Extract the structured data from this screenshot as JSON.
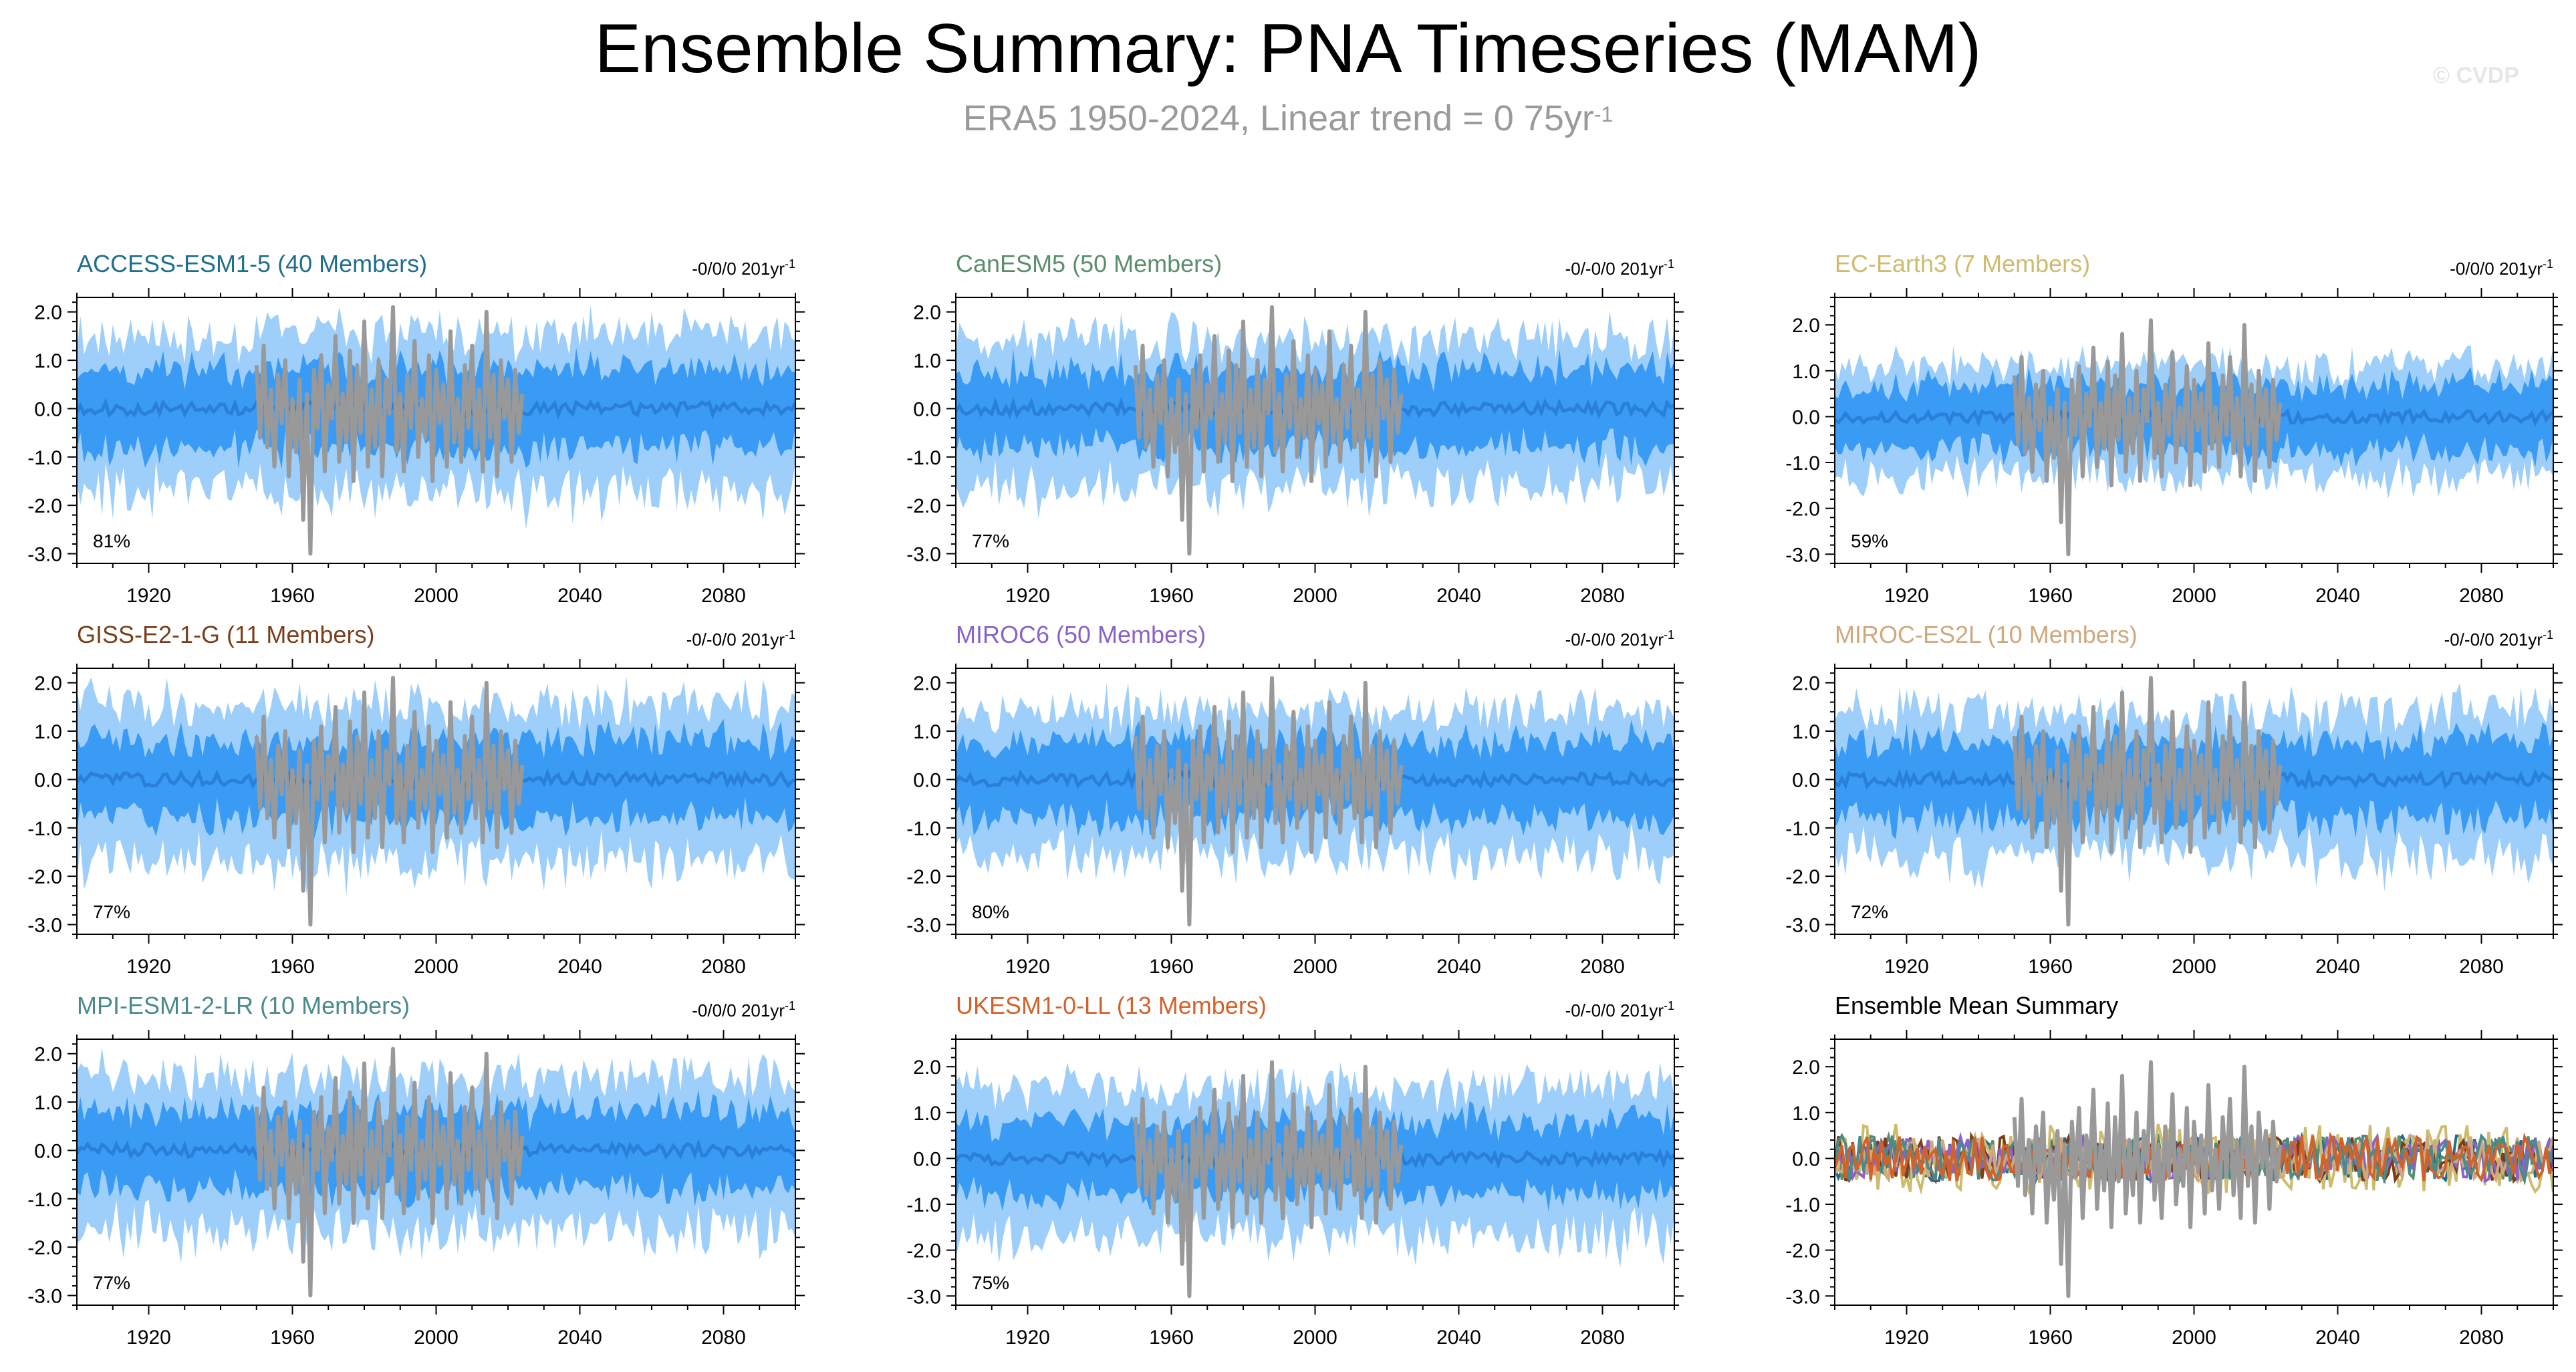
{
  "figure": {
    "title": "Ensemble Summary: PNA Timeseries (MAM)",
    "subtitle_main": "ERA5 1950-2024, Linear trend = 0 75yr",
    "subtitle_exp": "-1",
    "watermark": "© CVDP",
    "observations_color": "#999999",
    "spread_outer_color": "#9ecffa",
    "spread_inner_color": "#3a9bf5",
    "ensemble_mean_color": "#2a7fd8"
  },
  "chart_data": [
    {
      "type": "area",
      "title": "ACCESS-ESM1-5 (40 Members)",
      "title_color": "#1f6e8c",
      "trend": "-0/0/0 201yr",
      "trend_exp": "-1",
      "percent": "81%",
      "ylim": [
        -3.2,
        2.3
      ],
      "yticks": [
        2.0,
        1.0,
        0.0,
        -1.0,
        -2.0,
        -3.0
      ],
      "ytick_labels": [
        "2.0",
        "1.0",
        "0.0",
        "-1.0",
        "-2.0",
        "-3.0"
      ],
      "xlim": [
        1900,
        2100
      ],
      "xticks": [
        1920,
        1960,
        2000,
        2040,
        2080
      ],
      "xtick_labels": [
        "1920",
        "1960",
        "2000",
        "2040",
        "2080"
      ],
      "inner_halfwidth": 0.8,
      "outer_halfwidth": 1.5,
      "seed": 11
    },
    {
      "type": "area",
      "title": "CanESM5 (50 Members)",
      "title_color": "#5b8e6b",
      "trend": "-0/-0/0 201yr",
      "trend_exp": "-1",
      "percent": "77%",
      "ylim": [
        -3.2,
        2.3
      ],
      "yticks": [
        2.0,
        1.0,
        0.0,
        -1.0,
        -2.0,
        -3.0
      ],
      "ytick_labels": [
        "2.0",
        "1.0",
        "0.0",
        "-1.0",
        "-2.0",
        "-3.0"
      ],
      "xlim": [
        1900,
        2100
      ],
      "xticks": [
        1920,
        1960,
        2000,
        2040,
        2080
      ],
      "xtick_labels": [
        "1920",
        "1960",
        "2000",
        "2040",
        "2080"
      ],
      "inner_halfwidth": 0.8,
      "outer_halfwidth": 1.4,
      "seed": 23
    },
    {
      "type": "area",
      "title": "EC-Earth3 (7 Members)",
      "title_color": "#cdbb6e",
      "trend": "-0/0/0 201yr",
      "trend_exp": "-1",
      "percent": "59%",
      "ylim": [
        -3.2,
        2.6
      ],
      "yticks": [
        2.0,
        1.0,
        0.0,
        -1.0,
        -2.0,
        -3.0
      ],
      "ytick_labels": [
        "2.0",
        "1.0",
        "0.0",
        "-1.0",
        "-2.0",
        "-3.0"
      ],
      "xlim": [
        1900,
        2100
      ],
      "xticks": [
        1920,
        1960,
        2000,
        2040,
        2080
      ],
      "xtick_labels": [
        "1920",
        "1960",
        "2000",
        "2040",
        "2080"
      ],
      "inner_halfwidth": 0.7,
      "outer_halfwidth": 1.1,
      "seed": 37
    },
    {
      "type": "area",
      "title": "GISS-E2-1-G (11 Members)",
      "title_color": "#7a3f1a",
      "trend": "-0/-0/0 201yr",
      "trend_exp": "-1",
      "percent": "77%",
      "ylim": [
        -3.2,
        2.3
      ],
      "yticks": [
        2.0,
        1.0,
        0.0,
        -1.0,
        -2.0,
        -3.0
      ],
      "ytick_labels": [
        "2.0",
        "1.0",
        "0.0",
        "-1.0",
        "-2.0",
        "-3.0"
      ],
      "xlim": [
        1900,
        2100
      ],
      "xticks": [
        1920,
        1960,
        2000,
        2040,
        2080
      ],
      "xtick_labels": [
        "1920",
        "1960",
        "2000",
        "2040",
        "2080"
      ],
      "inner_halfwidth": 0.8,
      "outer_halfwidth": 1.5,
      "seed": 41
    },
    {
      "type": "area",
      "title": "MIROC6 (50 Members)",
      "title_color": "#8a63c9",
      "trend": "-0/-0/0 201yr",
      "trend_exp": "-1",
      "percent": "80%",
      "ylim": [
        -3.2,
        2.3
      ],
      "yticks": [
        2.0,
        1.0,
        0.0,
        -1.0,
        -2.0,
        -3.0
      ],
      "ytick_labels": [
        "2.0",
        "1.0",
        "0.0",
        "-1.0",
        "-2.0",
        "-3.0"
      ],
      "xlim": [
        1900,
        2100
      ],
      "xticks": [
        1920,
        1960,
        2000,
        2040,
        2080
      ],
      "xtick_labels": [
        "1920",
        "1960",
        "2000",
        "2040",
        "2080"
      ],
      "inner_halfwidth": 0.8,
      "outer_halfwidth": 1.4,
      "seed": 53
    },
    {
      "type": "area",
      "title": "MIROC-ES2L (10 Members)",
      "title_color": "#cfa87e",
      "trend": "-0/-0/0 201yr",
      "trend_exp": "-1",
      "percent": "72%",
      "ylim": [
        -3.2,
        2.3
      ],
      "yticks": [
        2.0,
        1.0,
        0.0,
        -1.0,
        -2.0,
        -3.0
      ],
      "ytick_labels": [
        "2.0",
        "1.0",
        "0.0",
        "-1.0",
        "-2.0",
        "-3.0"
      ],
      "xlim": [
        1900,
        2100
      ],
      "xticks": [
        1920,
        1960,
        2000,
        2040,
        2080
      ],
      "xtick_labels": [
        "1920",
        "1960",
        "2000",
        "2040",
        "2080"
      ],
      "inner_halfwidth": 0.8,
      "outer_halfwidth": 1.4,
      "seed": 67
    },
    {
      "type": "area",
      "title": "MPI-ESM1-2-LR (10 Members)",
      "title_color": "#4a8a8c",
      "trend": "-0/0/0 201yr",
      "trend_exp": "-1",
      "percent": "77%",
      "ylim": [
        -3.2,
        2.3
      ],
      "yticks": [
        2.0,
        1.0,
        0.0,
        -1.0,
        -2.0,
        -3.0
      ],
      "ytick_labels": [
        "2.0",
        "1.0",
        "0.0",
        "-1.0",
        "-2.0",
        "-3.0"
      ],
      "xlim": [
        1900,
        2100
      ],
      "xticks": [
        1920,
        1960,
        2000,
        2040,
        2080
      ],
      "xtick_labels": [
        "1920",
        "1960",
        "2000",
        "2040",
        "2080"
      ],
      "inner_halfwidth": 0.8,
      "outer_halfwidth": 1.5,
      "seed": 71
    },
    {
      "type": "area",
      "title": "UKESM1-0-LL (13 Members)",
      "title_color": "#d2622a",
      "trend": "-0/-0/0 201yr",
      "trend_exp": "-1",
      "percent": "75%",
      "ylim": [
        -3.2,
        2.6
      ],
      "yticks": [
        2.0,
        1.0,
        0.0,
        -1.0,
        -2.0,
        -3.0
      ],
      "ytick_labels": [
        "2.0",
        "1.0",
        "0.0",
        "-1.0",
        "-2.0",
        "-3.0"
      ],
      "xlim": [
        1900,
        2100
      ],
      "xticks": [
        1920,
        1960,
        2000,
        2040,
        2080
      ],
      "xtick_labels": [
        "1920",
        "1960",
        "2000",
        "2040",
        "2080"
      ],
      "inner_halfwidth": 0.8,
      "outer_halfwidth": 1.5,
      "seed": 83
    },
    {
      "type": "line",
      "title": "Ensemble Mean Summary",
      "title_color": "#000000",
      "trend": "",
      "trend_exp": "",
      "percent": "",
      "ylim": [
        -3.2,
        2.6
      ],
      "yticks": [
        2.0,
        1.0,
        0.0,
        -1.0,
        -2.0,
        -3.0
      ],
      "ytick_labels": [
        "2.0",
        "1.0",
        "0.0",
        "-1.0",
        "-2.0",
        "-3.0"
      ],
      "xlim": [
        1900,
        2100
      ],
      "xticks": [
        1920,
        1960,
        2000,
        2040,
        2080
      ],
      "xtick_labels": [
        "1920",
        "1960",
        "2000",
        "2040",
        "2080"
      ],
      "line_colors": [
        "#1f6e8c",
        "#5b8e6b",
        "#cdbb6e",
        "#7a3f1a",
        "#8a63c9",
        "#cfa87e",
        "#4a8a8c",
        "#d2622a"
      ],
      "seed": 97
    }
  ],
  "observations": {
    "name": "ERA5",
    "years": [
      1950,
      1951,
      1952,
      1953,
      1954,
      1955,
      1956,
      1957,
      1958,
      1959,
      1960,
      1961,
      1962,
      1963,
      1964,
      1965,
      1966,
      1967,
      1968,
      1969,
      1970,
      1971,
      1972,
      1973,
      1974,
      1975,
      1976,
      1977,
      1978,
      1979,
      1980,
      1981,
      1982,
      1983,
      1984,
      1985,
      1986,
      1987,
      1988,
      1989,
      1990,
      1991,
      1992,
      1993,
      1994,
      1995,
      1996,
      1997,
      1998,
      1999,
      2000,
      2001,
      2002,
      2003,
      2004,
      2005,
      2006,
      2007,
      2008,
      2009,
      2010,
      2011,
      2012,
      2013,
      2014,
      2015,
      2016,
      2017,
      2018,
      2019,
      2020,
      2021,
      2022,
      2023,
      2024
    ],
    "values": [
      0.9,
      -0.6,
      1.3,
      -0.8,
      0.4,
      -1.2,
      0.7,
      -0.3,
      1.0,
      -1.4,
      0.2,
      -0.9,
      0.6,
      -2.3,
      0.3,
      -3.0,
      0.8,
      -0.4,
      1.1,
      -1.3,
      0.5,
      -0.2,
      1.5,
      -1.1,
      0.3,
      -0.7,
      1.2,
      -1.5,
      0.9,
      -0.5,
      1.8,
      -1.2,
      0.4,
      -0.8,
      1.0,
      -1.4,
      0.6,
      -0.1,
      2.1,
      -0.9,
      0.3,
      -1.3,
      0.7,
      -0.4,
      1.4,
      -1.0,
      0.2,
      -0.6,
      1.1,
      -1.5,
      0.8,
      -0.3,
      0.5,
      -1.2,
      1.6,
      -0.7,
      0.2,
      -1.1,
      0.9,
      -0.4,
      1.3,
      -0.8,
      0.4,
      -1.3,
      2.0,
      -0.6,
      0.7,
      -1.4,
      1.0,
      -0.2,
      0.6,
      -1.1,
      0.8,
      -0.5,
      0.3
    ]
  }
}
